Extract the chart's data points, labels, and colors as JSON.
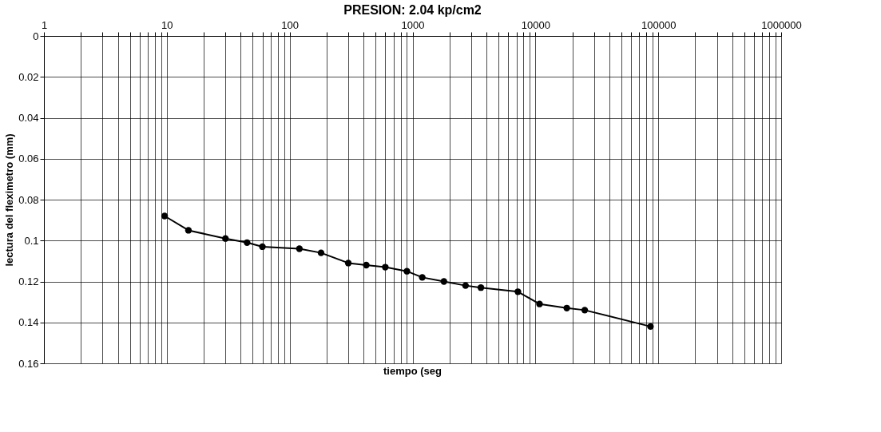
{
  "chart_data": {
    "type": "line",
    "title": "PRESION: 2.04 kp/cm2",
    "xlabel": "tiempo (seg",
    "ylabel": "lectura del fleximetro (mm)",
    "x": [
      9.6,
      15,
      30,
      45,
      60,
      120,
      180,
      300,
      420,
      600,
      900,
      1200,
      1800,
      2700,
      3600,
      7200,
      10800,
      18000,
      25200,
      86400
    ],
    "series": [
      {
        "color": "#000000",
        "values": [
          0.088,
          0.095,
          0.099,
          0.101,
          0.103,
          0.104,
          0.106,
          0.111,
          0.112,
          0.113,
          0.115,
          0.118,
          0.12,
          0.122,
          0.123,
          0.125,
          0.131,
          0.133,
          0.134,
          0.142
        ]
      }
    ],
    "log": "x",
    "xlim": [
      1,
      1000000
    ],
    "ylim": [
      0.16,
      0
    ],
    "xticks": [
      1,
      {
        "value": 2,
        "label": null
      },
      {
        "value": 3,
        "label": null
      },
      {
        "value": 4,
        "label": null
      },
      {
        "value": 5,
        "label": null
      },
      {
        "value": 6,
        "label": null
      },
      {
        "value": 7,
        "label": null
      },
      {
        "value": 8,
        "label": null
      },
      {
        "value": 9,
        "label": null
      },
      10,
      {
        "value": 20,
        "label": null
      },
      {
        "value": 30,
        "label": null
      },
      {
        "value": 40,
        "label": null
      },
      {
        "value": 50,
        "label": null
      },
      {
        "value": 60,
        "label": null
      },
      {
        "value": 70,
        "label": null
      },
      {
        "value": 80,
        "label": null
      },
      {
        "value": 90,
        "label": null
      },
      100,
      {
        "value": 200,
        "label": null
      },
      {
        "value": 300,
        "label": null
      },
      {
        "value": 400,
        "label": null
      },
      {
        "value": 500,
        "label": null
      },
      {
        "value": 600,
        "label": null
      },
      {
        "value": 700,
        "label": null
      },
      {
        "value": 800,
        "label": null
      },
      {
        "value": 900,
        "label": null
      },
      1000,
      {
        "value": 2000,
        "label": null
      },
      {
        "value": 3000,
        "label": null
      },
      {
        "value": 4000,
        "label": null
      },
      {
        "value": 5000,
        "label": null
      },
      {
        "value": 6000,
        "label": null
      },
      {
        "value": 7000,
        "label": null
      },
      {
        "value": 8000,
        "label": null
      },
      {
        "value": 9000,
        "label": null
      },
      10000,
      {
        "value": 20000,
        "label": null
      },
      {
        "value": 30000,
        "label": null
      },
      {
        "value": 40000,
        "label": null
      },
      {
        "value": 50000,
        "label": null
      },
      {
        "value": 60000,
        "label": null
      },
      {
        "value": 70000,
        "label": null
      },
      {
        "value": 80000,
        "label": null
      },
      {
        "value": 90000,
        "label": null
      },
      100000,
      {
        "value": 200000,
        "label": null
      },
      {
        "value": 300000,
        "label": null
      },
      {
        "value": 400000,
        "label": null
      },
      {
        "value": 500000,
        "label": null
      },
      {
        "value": 600000,
        "label": null
      },
      {
        "value": 700000,
        "label": null
      },
      {
        "value": 800000,
        "label": null
      },
      {
        "value": 900000,
        "label": null
      },
      1000000
    ],
    "yticks": [
      0,
      0.02,
      0.04,
      0.06,
      0.08,
      0.1,
      0.12,
      0.14,
      0.16
    ],
    "grid": true,
    "marker": "circle",
    "line_style": "solid"
  }
}
